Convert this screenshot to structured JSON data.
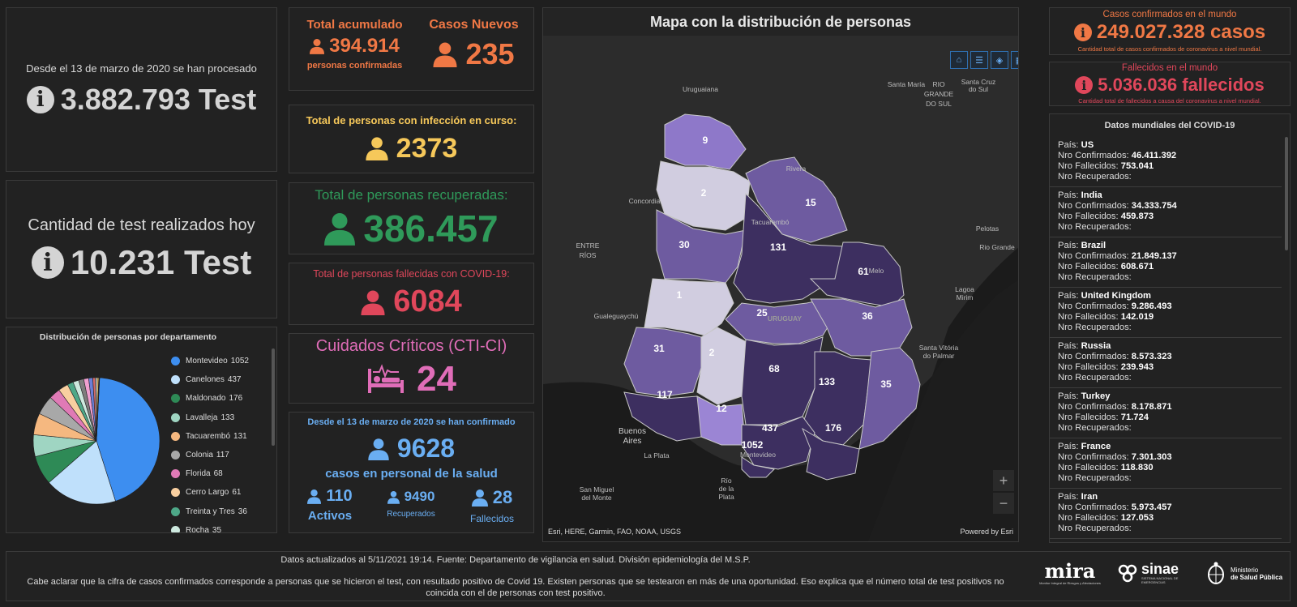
{
  "tests_total": {
    "caption": "Desde el 13 de marzo de 2020 se han procesado",
    "value": "3.882.793 Test"
  },
  "tests_today": {
    "caption": "Cantidad de test realizados hoy",
    "value": "10.231 Test"
  },
  "pie": {
    "title": "Distribución de personas por departamento",
    "legend": [
      {
        "label": "Montevideo",
        "value": "1052",
        "color": "#3d8ef0"
      },
      {
        "label": "Canelones",
        "value": "437",
        "color": "#bfe0fb"
      },
      {
        "label": "Maldonado",
        "value": "176",
        "color": "#2e8a56"
      },
      {
        "label": "Lavalleja",
        "value": "133",
        "color": "#9fd5c2"
      },
      {
        "label": "Tacuarembó",
        "value": "131",
        "color": "#f5b880"
      },
      {
        "label": "Colonia",
        "value": "117",
        "color": "#a8a8a8"
      },
      {
        "label": "Florida",
        "value": "68",
        "color": "#e07ab6"
      },
      {
        "label": "Cerro Largo",
        "value": "61",
        "color": "#f9cfa0"
      },
      {
        "label": "Treinta y Tres",
        "value": "36",
        "color": "#4ea888"
      },
      {
        "label": "Rocha",
        "value": "35",
        "color": "#cde9df"
      }
    ],
    "extra_slices": [
      {
        "value": 31,
        "color": "#7d7d7d"
      },
      {
        "value": 30,
        "color": "#f0a0d0"
      },
      {
        "value": 25,
        "color": "#6b7fd8"
      },
      {
        "value": 15,
        "color": "#d96b6b"
      },
      {
        "value": 12,
        "color": "#c9c9c9"
      },
      {
        "value": 9,
        "color": "#ffd36b"
      },
      {
        "value": 2,
        "color": "#9ad"
      },
      {
        "value": 2,
        "color": "#e8e8e8"
      },
      {
        "value": 1,
        "color": "#b05aa8"
      }
    ]
  },
  "acumulado": {
    "label": "Total acumulado",
    "value": "394.914",
    "sub": "personas confirmadas"
  },
  "nuevos": {
    "label": "Casos Nuevos",
    "value": "235"
  },
  "en_curso": {
    "label": "Total de personas con infección en curso:",
    "value": "2373"
  },
  "recuperadas": {
    "label": "Total de personas recuperadas:",
    "value": "386.457"
  },
  "fallecidas": {
    "label": "Total de personas fallecidas con COVID-19:",
    "value": "6084"
  },
  "cti": {
    "label": "Cuidados Críticos (CTI-CI)",
    "value": "24"
  },
  "salud": {
    "caption": "Desde el 13 de marzo de 2020 se han confirmado",
    "value": "9628",
    "sub": "casos en personal de la salud",
    "activos_value": "110",
    "activos_label": "Activos",
    "recuperados_value": "9490",
    "recuperados_label": "Recuperados",
    "fallecidos_value": "28",
    "fallecidos_label": "Fallecidos"
  },
  "map": {
    "title": "Mapa con la distribución de personas",
    "attribution": "Esri, HERE, Garmin, FAO, NOAA, USGS",
    "powered": "Powered by Esri",
    "zoom_in": "+",
    "zoom_out": "−",
    "regions": {
      "artigas": "9",
      "salto": "2",
      "rivera": "15",
      "paysandu": "30",
      "tacuarembo": "131",
      "cerro_largo": "61",
      "rio_negro": "1",
      "durazno": "25",
      "treinta_y_tres": "36",
      "soriano": "31",
      "flores": "2",
      "florida": "68",
      "colonia": "117",
      "san_jose": "12",
      "lavalleja": "133",
      "rocha": "35",
      "canelones": "437",
      "maldonado": "176",
      "montevideo": "1052"
    },
    "places": {
      "uruguaiana": "Uruguaiana",
      "santa_maria": "Santa María",
      "santa_cruz": "Santa Cruz",
      "do_sul": "do Sul",
      "rio_grande_1": "RIO",
      "rio_grande_2": "GRANDE",
      "rio_grande_3": "DO SUL",
      "rivera": "Rivera",
      "concordia": "Concordia",
      "tacuarembo": "Tacuarembó",
      "pelotas": "Pelotas",
      "rio_grande": "Rio Grande",
      "entre": "ENTRE",
      "rios": "RÍOS",
      "melo": "Melo",
      "lagoa": "Lagoa",
      "mirim": "Mirim",
      "gualeguaychu": "Gualeguaychú",
      "uruguay": "URUGUAY",
      "santa_vitoria": "Santa Vitória",
      "do_palmar": "do Palmar",
      "buenos": "Buenos",
      "aires": "Aires",
      "la_plata": "La Plata",
      "montevideo": "Montevideo",
      "san_miguel": "San Miguel",
      "del_monte": "del Monte",
      "rio": "Río",
      "de_la": "de la",
      "plata": "Plata"
    }
  },
  "world": {
    "confirmados_label": "Casos confirmados en el mundo",
    "confirmados_value": "249.027.328 casos",
    "confirmados_sub": "Cantidad total de casos confirmados de coronavirus a nivel mundial.",
    "fallecidos_label": "Fallecidos en el mundo",
    "fallecidos_value": "5.036.036 fallecidos",
    "fallecidos_sub": "Cantidad total de fallecidos a causa del coronavirus a nivel mundial."
  },
  "countries": {
    "title": "Datos mundiales del COVID-19",
    "pais_label": "País: ",
    "conf_label": "Nro Confirmados: ",
    "fall_label": "Nro Fallecidos: ",
    "rec_label": "Nro Recuperados:",
    "items": [
      {
        "name": "US",
        "confirmados": "46.411.392",
        "fallecidos": "753.041"
      },
      {
        "name": "India",
        "confirmados": "34.333.754",
        "fallecidos": "459.873"
      },
      {
        "name": "Brazil",
        "confirmados": "21.849.137",
        "fallecidos": "608.671"
      },
      {
        "name": "United Kingdom",
        "confirmados": "9.286.493",
        "fallecidos": "142.019"
      },
      {
        "name": "Russia",
        "confirmados": "8.573.323",
        "fallecidos": "239.943"
      },
      {
        "name": "Turkey",
        "confirmados": "8.178.871",
        "fallecidos": "71.724"
      },
      {
        "name": "France",
        "confirmados": "7.301.303",
        "fallecidos": "118.830"
      },
      {
        "name": "Iran",
        "confirmados": "5.973.457",
        "fallecidos": "127.053"
      }
    ]
  },
  "footer": {
    "line1": "Datos actualizados al 5/11/2021 19:14. Fuente: Departamento de vigilancia en salud. División epidemiología del M.S.P.",
    "line2": "Cabe aclarar que la cifra de casos confirmados corresponde a personas que se hicieron el test, con resultado positivo de Covid 19. Existen personas que se testearon en más de una oportunidad. Eso explica que el número total de test positivos no coincida con el de personas con test positivo.",
    "logo_mira": "mira",
    "logo_mira_sub": "Monitor Integral de Riesgos y Afectaciones",
    "logo_sinae": "sinae",
    "logo_sinae_sub": "SISTEMA NACIONAL DE EMERGENCIAS",
    "logo_msp_1": "Ministerio",
    "logo_msp_2": "de Salud Pública"
  }
}
